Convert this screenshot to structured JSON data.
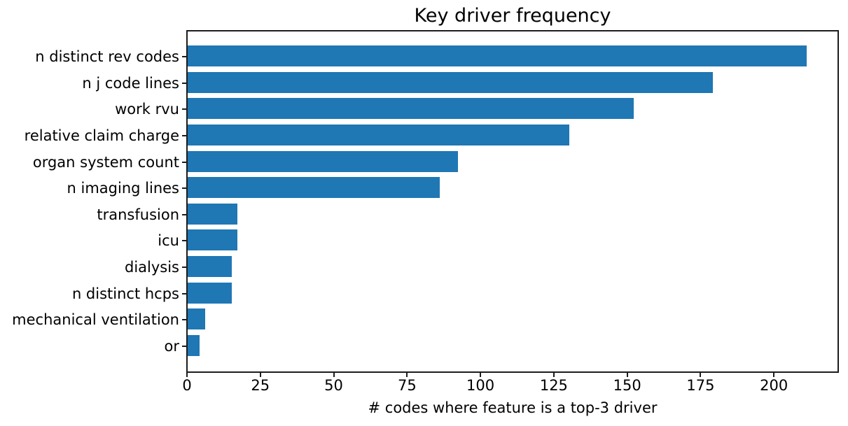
{
  "figure": {
    "title": "Key driver frequency"
  },
  "chart_data": {
    "type": "bar",
    "orientation": "horizontal",
    "title": "Key driver frequency",
    "xlabel": "# codes where feature is a top-3 driver",
    "ylabel": "",
    "categories": [
      "n distinct rev codes",
      "n j code lines",
      "work rvu",
      "relative claim charge",
      "organ system count",
      "n imaging lines",
      "transfusion",
      "icu",
      "dialysis",
      "n distinct hcps",
      "mechanical ventilation",
      "or"
    ],
    "values": [
      211,
      179,
      152,
      130,
      92,
      86,
      17,
      17,
      15,
      15,
      6,
      4
    ],
    "xlim": [
      0,
      221.9
    ],
    "xticks": [
      0,
      25,
      50,
      75,
      100,
      125,
      150,
      175,
      200
    ],
    "grid": false,
    "legend": null,
    "bar_color": "#1f77b4",
    "spine_color": "#1c1c1c",
    "text_color": "#000000"
  }
}
